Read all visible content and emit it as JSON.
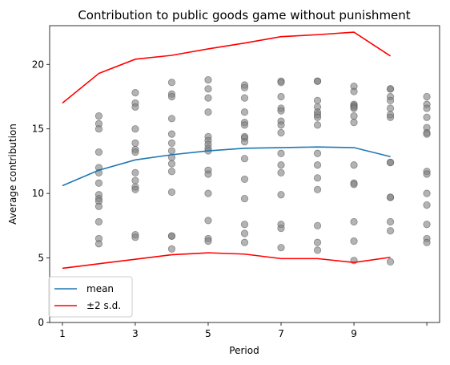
{
  "chart_data": {
    "type": "line",
    "title": "Contribution to public goods game without punishment",
    "xlabel": "Period",
    "ylabel": "Average contribution",
    "xlim": [
      0.65,
      11.35
    ],
    "ylim": [
      0,
      23
    ],
    "xticks": [
      1,
      3,
      5,
      7,
      9,
      11
    ],
    "xtick_labels": [
      "1",
      "3",
      "5",
      "7",
      "9",
      ""
    ],
    "yticks": [
      0,
      5,
      10,
      15,
      20
    ],
    "grid": false,
    "legend_position": "lower-left",
    "series": [
      {
        "name": "mean",
        "color": "#1f77b4",
        "x": [
          1,
          2,
          3,
          4,
          5,
          6,
          7,
          8,
          9,
          10
        ],
        "values": [
          10.6,
          11.8,
          12.6,
          13.0,
          13.3,
          13.5,
          13.55,
          13.6,
          13.55,
          12.85
        ]
      },
      {
        "name": "±2 s.d.",
        "color": "#ff0000",
        "x": [
          1,
          2,
          3,
          4,
          5,
          6,
          7,
          8,
          9,
          10
        ],
        "values": [
          17.0,
          19.3,
          20.4,
          20.7,
          21.2,
          21.65,
          22.15,
          22.3,
          22.5,
          20.65
        ]
      },
      {
        "name": "",
        "color": "#ff0000",
        "x": [
          1,
          2,
          3,
          4,
          5,
          6,
          7,
          8,
          9,
          10
        ],
        "values": [
          4.2,
          4.55,
          4.9,
          5.25,
          5.4,
          5.3,
          4.95,
          4.95,
          4.65,
          5.05
        ]
      }
    ],
    "scatter": {
      "color": "#808080",
      "points": [
        [
          2,
          16.0
        ],
        [
          2,
          15.4
        ],
        [
          2,
          15.0
        ],
        [
          2,
          13.2
        ],
        [
          2,
          12.0
        ],
        [
          2,
          11.6
        ],
        [
          2,
          10.8
        ],
        [
          2,
          9.9
        ],
        [
          2,
          9.6
        ],
        [
          2,
          9.4
        ],
        [
          2,
          9.0
        ],
        [
          2,
          7.8
        ],
        [
          2,
          6.5
        ],
        [
          2,
          6.1
        ],
        [
          3,
          17.8
        ],
        [
          3,
          17.0
        ],
        [
          3,
          16.7
        ],
        [
          3,
          15.0
        ],
        [
          3,
          13.9
        ],
        [
          3,
          13.4
        ],
        [
          3,
          13.2
        ],
        [
          3,
          11.6
        ],
        [
          3,
          11.0
        ],
        [
          3,
          10.5
        ],
        [
          3,
          10.3
        ],
        [
          3,
          6.8
        ],
        [
          3,
          6.6
        ],
        [
          4,
          18.6
        ],
        [
          4,
          17.7
        ],
        [
          4,
          17.5
        ],
        [
          4,
          15.8
        ],
        [
          4,
          14.6
        ],
        [
          4,
          13.9
        ],
        [
          4,
          13.3
        ],
        [
          4,
          12.8
        ],
        [
          4,
          12.3
        ],
        [
          4,
          11.7
        ],
        [
          4,
          10.1
        ],
        [
          4,
          6.7
        ],
        [
          4,
          6.7
        ],
        [
          4,
          5.7
        ],
        [
          5,
          18.8
        ],
        [
          5,
          18.1
        ],
        [
          5,
          17.4
        ],
        [
          5,
          16.3
        ],
        [
          5,
          14.4
        ],
        [
          5,
          14.1
        ],
        [
          5,
          13.8
        ],
        [
          5,
          13.5
        ],
        [
          5,
          13.3
        ],
        [
          5,
          11.8
        ],
        [
          5,
          11.5
        ],
        [
          5,
          10.0
        ],
        [
          5,
          7.9
        ],
        [
          5,
          6.5
        ],
        [
          5,
          6.3
        ],
        [
          6,
          18.4
        ],
        [
          6,
          18.2
        ],
        [
          6,
          17.4
        ],
        [
          6,
          16.3
        ],
        [
          6,
          15.5
        ],
        [
          6,
          15.3
        ],
        [
          6,
          14.4
        ],
        [
          6,
          14.3
        ],
        [
          6,
          14.0
        ],
        [
          6,
          12.7
        ],
        [
          6,
          11.1
        ],
        [
          6,
          9.6
        ],
        [
          6,
          7.6
        ],
        [
          6,
          6.9
        ],
        [
          6,
          6.2
        ],
        [
          7,
          18.7
        ],
        [
          7,
          18.6
        ],
        [
          7,
          17.5
        ],
        [
          7,
          16.6
        ],
        [
          7,
          16.4
        ],
        [
          7,
          15.6
        ],
        [
          7,
          15.3
        ],
        [
          7,
          14.7
        ],
        [
          7,
          13.1
        ],
        [
          7,
          12.2
        ],
        [
          7,
          11.6
        ],
        [
          7,
          9.9
        ],
        [
          7,
          7.6
        ],
        [
          7,
          7.3
        ],
        [
          7,
          5.8
        ],
        [
          8,
          18.7
        ],
        [
          8,
          18.7
        ],
        [
          8,
          17.2
        ],
        [
          8,
          16.7
        ],
        [
          8,
          16.3
        ],
        [
          8,
          16.1
        ],
        [
          8,
          15.9
        ],
        [
          8,
          15.3
        ],
        [
          8,
          13.1
        ],
        [
          8,
          12.2
        ],
        [
          8,
          11.2
        ],
        [
          8,
          10.3
        ],
        [
          8,
          7.5
        ],
        [
          8,
          6.2
        ],
        [
          8,
          5.6
        ],
        [
          9,
          18.3
        ],
        [
          9,
          17.9
        ],
        [
          9,
          16.9
        ],
        [
          9,
          16.8
        ],
        [
          9,
          16.7
        ],
        [
          9,
          16.6
        ],
        [
          9,
          16.0
        ],
        [
          9,
          15.5
        ],
        [
          9,
          12.2
        ],
        [
          9,
          10.8
        ],
        [
          9,
          10.7
        ],
        [
          9,
          7.8
        ],
        [
          9,
          6.3
        ],
        [
          9,
          4.8
        ],
        [
          10,
          18.1
        ],
        [
          10,
          18.1
        ],
        [
          10,
          17.5
        ],
        [
          10,
          17.2
        ],
        [
          10,
          16.6
        ],
        [
          10,
          16.1
        ],
        [
          10,
          15.9
        ],
        [
          10,
          12.4
        ],
        [
          10,
          12.4
        ],
        [
          10,
          9.7
        ],
        [
          10,
          9.7
        ],
        [
          10,
          7.8
        ],
        [
          10,
          7.1
        ],
        [
          10,
          4.7
        ],
        [
          11,
          17.5
        ],
        [
          11,
          16.9
        ],
        [
          11,
          16.6
        ],
        [
          11,
          15.9
        ],
        [
          11,
          15.1
        ],
        [
          11,
          14.7
        ],
        [
          11,
          14.6
        ],
        [
          11,
          11.7
        ],
        [
          11,
          11.5
        ],
        [
          11,
          10.0
        ],
        [
          11,
          9.1
        ],
        [
          11,
          7.6
        ],
        [
          11,
          6.5
        ],
        [
          11,
          6.2
        ]
      ]
    }
  }
}
